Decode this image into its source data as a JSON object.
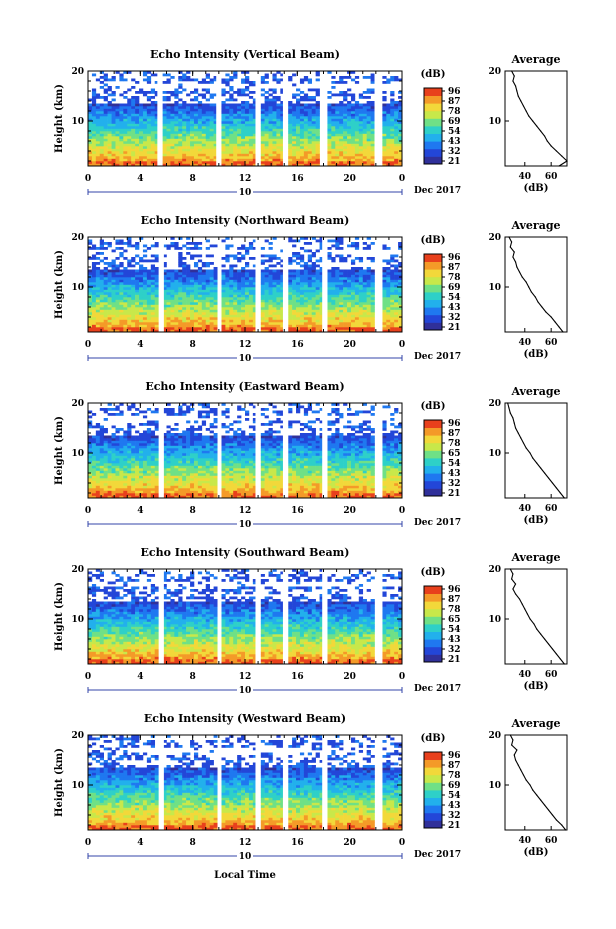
{
  "colors": {
    "colormap": [
      "#30309a",
      "#2346d8",
      "#1f78f0",
      "#22b0ec",
      "#2ed0c8",
      "#6fe086",
      "#c8e84a",
      "#f2d83a",
      "#f49a28",
      "#e8401c"
    ],
    "gap": "#ffffff",
    "axis": "#000000",
    "date_bar": "#3344aa"
  },
  "labels": {
    "colorbar_unit": "(dB)",
    "date": "Dec 2017",
    "day": "10",
    "local_time": "Local Time",
    "avg_title": "Average",
    "avg_xlabel": "(dB)"
  },
  "chart_data": [
    {
      "type": "heatmap",
      "title": "Echo Intensity (Vertical Beam)",
      "ylabel": "Height (km)",
      "xlabel": "Local Time",
      "x_ticks": [
        "0",
        "4",
        "8",
        "12",
        "16",
        "20",
        "0"
      ],
      "xlim_hours": [
        0,
        24
      ],
      "y_ticks": [
        "10",
        "20"
      ],
      "ylim_km": [
        1,
        20
      ],
      "colorbar_ticks": [
        "96",
        "87",
        "78",
        "69",
        "54",
        "43",
        "32",
        "21"
      ],
      "colorbar_range_db": [
        21,
        96
      ],
      "gap_intervals_hours": [
        [
          5.3,
          5.7
        ],
        [
          9.8,
          10.1
        ],
        [
          12.8,
          13.2
        ],
        [
          14.9,
          15.2
        ],
        [
          17.8,
          18.2
        ],
        [
          21.9,
          22.4
        ]
      ],
      "profile": {
        "xlabel": "(dB)",
        "x_ticks": [
          "40",
          "60"
        ],
        "xlim": [
          25,
          72
        ],
        "heights_km": [
          1,
          2,
          3,
          4,
          5,
          6,
          7,
          8,
          9,
          10,
          11,
          12,
          13,
          14,
          15,
          16,
          17,
          18,
          19,
          20
        ],
        "values_db": [
          66,
          72,
          68,
          64,
          60,
          57,
          55,
          52,
          49,
          46,
          43,
          41,
          39,
          37,
          35,
          34,
          33,
          31,
          32,
          30
        ]
      }
    },
    {
      "type": "heatmap",
      "title": "Echo Intensity (Northward Beam)",
      "ylabel": "Height (km)",
      "xlabel": "Local Time",
      "x_ticks": [
        "0",
        "4",
        "8",
        "12",
        "16",
        "20",
        "0"
      ],
      "xlim_hours": [
        0,
        24
      ],
      "y_ticks": [
        "10",
        "20"
      ],
      "ylim_km": [
        1,
        20
      ],
      "colorbar_ticks": [
        "96",
        "87",
        "78",
        "69",
        "54",
        "43",
        "32",
        "21"
      ],
      "colorbar_range_db": [
        21,
        96
      ],
      "gap_intervals_hours": [
        [
          5.4,
          5.8
        ],
        [
          9.9,
          10.2
        ],
        [
          12.8,
          13.2
        ],
        [
          14.9,
          15.3
        ],
        [
          17.9,
          18.3
        ],
        [
          22.0,
          22.5
        ]
      ],
      "profile": {
        "xlabel": "(dB)",
        "x_ticks": [
          "40",
          "60"
        ],
        "xlim": [
          25,
          72
        ],
        "heights_km": [
          1,
          2,
          3,
          4,
          5,
          6,
          7,
          8,
          9,
          10,
          11,
          12,
          13,
          14,
          15,
          16,
          17,
          18,
          19,
          20
        ],
        "values_db": [
          69,
          66,
          63,
          60,
          56,
          53,
          50,
          48,
          45,
          43,
          41,
          38,
          36,
          34,
          33,
          31,
          32,
          29,
          30,
          28
        ]
      }
    },
    {
      "type": "heatmap",
      "title": "Echo Intensity (Eastward Beam)",
      "ylabel": "Height (km)",
      "xlabel": "Local Time",
      "x_ticks": [
        "0",
        "4",
        "8",
        "12",
        "16",
        "20",
        "0"
      ],
      "xlim_hours": [
        0,
        24
      ],
      "y_ticks": [
        "10",
        "20"
      ],
      "ylim_km": [
        1,
        20
      ],
      "colorbar_ticks": [
        "96",
        "87",
        "78",
        "65",
        "54",
        "43",
        "32",
        "21"
      ],
      "colorbar_range_db": [
        21,
        96
      ],
      "gap_intervals_hours": [
        [
          5.4,
          5.8
        ],
        [
          9.9,
          10.2
        ],
        [
          12.8,
          13.2
        ],
        [
          14.9,
          15.3
        ],
        [
          17.9,
          18.3
        ],
        [
          22.0,
          22.5
        ]
      ],
      "profile": {
        "xlabel": "(dB)",
        "x_ticks": [
          "40",
          "60"
        ],
        "xlim": [
          25,
          72
        ],
        "heights_km": [
          1,
          2,
          3,
          4,
          5,
          6,
          7,
          8,
          9,
          10,
          11,
          12,
          13,
          14,
          15,
          16,
          17,
          18,
          19,
          20
        ],
        "values_db": [
          70,
          67,
          64,
          61,
          58,
          55,
          52,
          49,
          46,
          44,
          41,
          39,
          37,
          35,
          33,
          32,
          31,
          29,
          28,
          27
        ]
      }
    },
    {
      "type": "heatmap",
      "title": "Echo Intensity (Southward Beam)",
      "ylabel": "Height (km)",
      "xlabel": "Local Time",
      "x_ticks": [
        "0",
        "4",
        "8",
        "12",
        "16",
        "20",
        "0"
      ],
      "xlim_hours": [
        0,
        24
      ],
      "y_ticks": [
        "10",
        "20"
      ],
      "ylim_km": [
        1,
        20
      ],
      "colorbar_ticks": [
        "96",
        "87",
        "78",
        "65",
        "54",
        "43",
        "32",
        "21"
      ],
      "colorbar_range_db": [
        21,
        96
      ],
      "gap_intervals_hours": [
        [
          5.4,
          5.8
        ],
        [
          9.9,
          10.2
        ],
        [
          12.8,
          13.2
        ],
        [
          14.9,
          15.3
        ],
        [
          17.9,
          18.3
        ],
        [
          22.0,
          22.5
        ]
      ],
      "profile": {
        "xlabel": "(dB)",
        "x_ticks": [
          "40",
          "60"
        ],
        "xlim": [
          25,
          72
        ],
        "heights_km": [
          1,
          2,
          3,
          4,
          5,
          6,
          7,
          8,
          9,
          10,
          11,
          12,
          13,
          14,
          15,
          16,
          17,
          18,
          19,
          20
        ],
        "values_db": [
          70,
          67,
          64,
          61,
          58,
          55,
          52,
          49,
          47,
          44,
          42,
          40,
          38,
          36,
          33,
          31,
          33,
          30,
          31,
          29
        ]
      }
    },
    {
      "type": "heatmap",
      "title": "Echo Intensity (Westward Beam)",
      "ylabel": "Height (km)",
      "xlabel": "Local Time",
      "x_ticks": [
        "0",
        "4",
        "8",
        "12",
        "16",
        "20",
        "0"
      ],
      "xlim_hours": [
        0,
        24
      ],
      "y_ticks": [
        "10",
        "20"
      ],
      "ylim_km": [
        1,
        20
      ],
      "colorbar_ticks": [
        "96",
        "87",
        "78",
        "69",
        "54",
        "43",
        "32",
        "21"
      ],
      "colorbar_range_db": [
        21,
        96
      ],
      "gap_intervals_hours": [
        [
          5.4,
          5.8
        ],
        [
          9.9,
          10.2
        ],
        [
          12.8,
          13.2
        ],
        [
          14.9,
          15.3
        ],
        [
          17.9,
          18.3
        ],
        [
          22.0,
          22.5
        ]
      ],
      "profile": {
        "xlabel": "(dB)",
        "x_ticks": [
          "40",
          "60"
        ],
        "xlim": [
          25,
          72
        ],
        "heights_km": [
          1,
          2,
          3,
          4,
          5,
          6,
          7,
          8,
          9,
          10,
          11,
          12,
          13,
          14,
          15,
          16,
          17,
          18,
          19,
          20
        ],
        "values_db": [
          71,
          68,
          64,
          61,
          58,
          55,
          52,
          49,
          46,
          44,
          41,
          39,
          37,
          35,
          33,
          32,
          34,
          30,
          31,
          29
        ]
      }
    }
  ]
}
